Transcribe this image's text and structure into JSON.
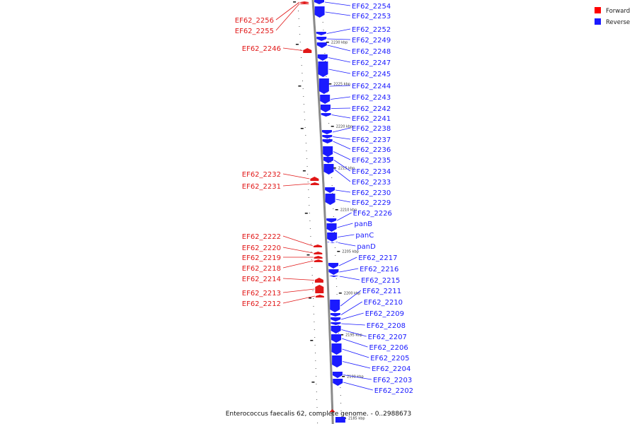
{
  "title": "Enterococcus faecalis 62, complete genome. - 0..2988673",
  "legend": [
    {
      "label": "Forward",
      "color": "#ff0000"
    },
    {
      "label": "Reverse",
      "color": "#1a1aff"
    }
  ],
  "colors": {
    "forward": "#e11717",
    "reverse": "#1a1aff",
    "backbone": "#8a8a8a"
  },
  "ticks": [
    "2230 kbp",
    "2225 kbp",
    "2220 kbp",
    "2215 kbp",
    "2210 kbp",
    "2205 kbp",
    "2200 kbp",
    "2195 kbp",
    "2190 kbp",
    "2185 kbp"
  ],
  "forward_genes": [
    "EF62_2256",
    "EF62_2255",
    "EF62_2246",
    "EF62_2232",
    "EF62_2231",
    "EF62_2222",
    "EF62_2220",
    "EF62_2219",
    "EF62_2218",
    "EF62_2214",
    "EF62_2213",
    "EF62_2212"
  ],
  "reverse_genes": [
    "EF62_2254",
    "EF62_2253",
    "EF62_2252",
    "EF62_2249",
    "EF62_2248",
    "EF62_2247",
    "EF62_2245",
    "EF62_2244",
    "EF62_2243",
    "EF62_2242",
    "EF62_2241",
    "EF62_2238",
    "EF62_2237",
    "EF62_2236",
    "EF62_2235",
    "EF62_2234",
    "EF62_2233",
    "EF62_2230",
    "EF62_2229",
    "EF62_2226",
    "panB",
    "panC",
    "panD",
    "EF62_2217",
    "EF62_2216",
    "EF62_2215",
    "EF62_2211",
    "EF62_2210",
    "EF62_2209",
    "EF62_2208",
    "EF62_2207",
    "EF62_2206",
    "EF62_2205",
    "EF62_2204",
    "EF62_2203",
    "EF62_2202"
  ]
}
